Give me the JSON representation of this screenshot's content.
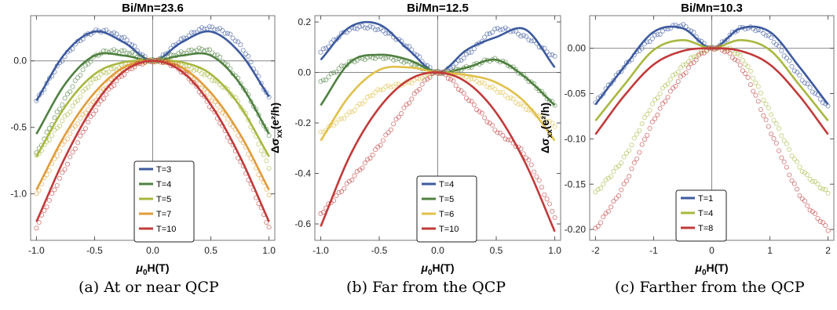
{
  "chart_data": [
    {
      "type": "line",
      "title": "Bi/Mn=23.6",
      "xlabel": "μ0H(T)",
      "ylabel": "Δσxx(e²/h)",
      "xlim": [
        -1.05,
        1.05
      ],
      "ylim": [
        -1.35,
        0.34
      ],
      "xticks": [
        -1.0,
        -0.5,
        0.0,
        0.5,
        1.0
      ],
      "xtick_labels": [
        "-1.0",
        "-0.5",
        "0.0",
        "0.5",
        "1.0"
      ],
      "yticks": [
        0.0,
        -0.5,
        -1.0
      ],
      "ytick_labels": [
        "0.0",
        "-0.5",
        "-1.0"
      ],
      "legend_position": "bottom-center",
      "caption": "(a) At or near QCP",
      "series": [
        {
          "name": "T=3",
          "color": "#3d5a9e",
          "x": [
            -1.0,
            -0.75,
            -0.5,
            -0.25,
            0.0,
            0.25,
            0.5,
            0.75,
            1.0
          ],
          "fit": [
            -0.3,
            0.06,
            0.22,
            0.14,
            0.0,
            0.14,
            0.22,
            0.06,
            -0.27
          ],
          "data": [
            -0.3,
            0.04,
            0.22,
            0.17,
            0.0,
            0.16,
            0.25,
            0.12,
            -0.28
          ]
        },
        {
          "name": "T=4",
          "color": "#4f8040",
          "x": [
            -1.0,
            -0.75,
            -0.5,
            -0.25,
            0.0,
            0.25,
            0.5,
            0.75,
            1.0
          ],
          "fit": [
            -0.55,
            -0.17,
            0.04,
            0.04,
            0.0,
            0.04,
            0.04,
            -0.17,
            -0.55
          ],
          "data": [
            -0.7,
            -0.28,
            0.03,
            0.07,
            0.0,
            0.06,
            0.07,
            -0.16,
            -0.56
          ]
        },
        {
          "name": "T=5",
          "color": "#a8b840",
          "x": [
            -1.0,
            -0.75,
            -0.5,
            -0.25,
            0.0,
            0.25,
            0.5,
            0.75,
            1.0
          ],
          "fit": [
            -0.72,
            -0.34,
            -0.1,
            -0.01,
            0.0,
            -0.01,
            -0.1,
            -0.34,
            -0.72
          ],
          "data": [
            -0.72,
            -0.42,
            -0.14,
            -0.04,
            0.0,
            -0.03,
            -0.13,
            -0.33,
            -0.8
          ]
        },
        {
          "name": "T=7",
          "color": "#e09c3a",
          "x": [
            -1.0,
            -0.75,
            -0.5,
            -0.25,
            0.0,
            0.25,
            0.5,
            0.75,
            1.0
          ],
          "fit": [
            -0.97,
            -0.55,
            -0.24,
            -0.05,
            0.0,
            -0.05,
            -0.24,
            -0.55,
            -0.97
          ],
          "data": [
            -1.0,
            -0.6,
            -0.3,
            -0.06,
            0.0,
            -0.05,
            -0.28,
            -0.58,
            -1.0
          ]
        },
        {
          "name": "T=10",
          "color": "#c13a3a",
          "x": [
            -1.0,
            -0.75,
            -0.5,
            -0.25,
            0.0,
            0.25,
            0.5,
            0.75,
            1.0
          ],
          "fit": [
            -1.21,
            -0.72,
            -0.33,
            -0.08,
            0.0,
            -0.08,
            -0.33,
            -0.72,
            -1.21
          ],
          "data": [
            -1.25,
            -0.8,
            -0.38,
            -0.1,
            0.0,
            -0.08,
            -0.35,
            -0.75,
            -1.25
          ]
        }
      ]
    },
    {
      "type": "line",
      "title": "Bi/Mn=12.5",
      "xlabel": "μ0H(T)",
      "ylabel": "Δσxx(e²/h)",
      "xlim": [
        -1.05,
        1.05
      ],
      "ylim": [
        -0.665,
        0.225
      ],
      "xticks": [
        -1.0,
        -0.5,
        0.0,
        0.5,
        1.0
      ],
      "xtick_labels": [
        "-1.0",
        "-0.5",
        "0.0",
        "0.5",
        "1.0"
      ],
      "yticks": [
        0.2,
        0.0,
        -0.2,
        -0.4,
        -0.6
      ],
      "ytick_labels": [
        "0.2",
        "0.0",
        "-0.2",
        "-0.4",
        "-0.6"
      ],
      "legend_position": "bottom-center",
      "caption": "(b) Far from the QCP",
      "series": [
        {
          "name": "T=4",
          "color": "#3d5a9e",
          "x": [
            -1.0,
            -0.75,
            -0.5,
            -0.25,
            0.0,
            0.25,
            0.5,
            0.75,
            1.0
          ],
          "fit": [
            0.05,
            0.18,
            0.19,
            0.09,
            0.0,
            0.09,
            0.14,
            0.17,
            0.02
          ],
          "data": [
            0.08,
            0.17,
            0.17,
            0.1,
            0.0,
            0.07,
            0.17,
            0.14,
            0.06
          ]
        },
        {
          "name": "T=5",
          "color": "#4f8040",
          "x": [
            -1.0,
            -0.75,
            -0.5,
            -0.25,
            0.0,
            0.25,
            0.5,
            0.75,
            1.0
          ],
          "fit": [
            -0.13,
            0.04,
            0.07,
            0.05,
            0.0,
            0.02,
            0.05,
            -0.02,
            -0.13
          ],
          "data": [
            -0.04,
            0.04,
            0.06,
            0.04,
            0.0,
            0.02,
            0.05,
            -0.02,
            -0.13
          ]
        },
        {
          "name": "T=6",
          "color": "#e0c04a",
          "x": [
            -1.0,
            -0.75,
            -0.5,
            -0.25,
            0.0,
            0.25,
            0.5,
            0.75,
            1.0
          ],
          "fit": [
            -0.27,
            -0.09,
            0.01,
            0.02,
            0.0,
            -0.01,
            -0.04,
            -0.12,
            -0.27
          ],
          "data": [
            -0.24,
            -0.16,
            -0.07,
            -0.04,
            0.0,
            -0.02,
            -0.07,
            -0.14,
            -0.21
          ]
        },
        {
          "name": "T=10",
          "color": "#c13a3a",
          "x": [
            -1.0,
            -0.75,
            -0.5,
            -0.25,
            0.0,
            0.25,
            0.5,
            0.75,
            1.0
          ],
          "fit": [
            -0.61,
            -0.33,
            -0.14,
            -0.03,
            0.0,
            -0.04,
            -0.16,
            -0.36,
            -0.63
          ],
          "data": [
            -0.56,
            -0.43,
            -0.29,
            -0.12,
            0.0,
            -0.1,
            -0.23,
            -0.33,
            -0.57
          ]
        }
      ]
    },
    {
      "type": "line",
      "title": "Bi/Mn=10.3",
      "xlabel": "μ0H(T)",
      "ylabel": "Δσxx(e²/h)",
      "xlim": [
        -2.1,
        2.1
      ],
      "ylim": [
        -0.212,
        0.036
      ],
      "xticks": [
        -2,
        -1,
        0,
        1,
        2
      ],
      "xtick_labels": [
        "-2",
        "-1",
        "0",
        "1",
        "2"
      ],
      "yticks": [
        0.0,
        -0.05,
        -0.1,
        -0.15,
        -0.2
      ],
      "ytick_labels": [
        "0.00",
        "-0.05",
        "-0.10",
        "-0.15",
        "-0.20"
      ],
      "legend_position": "bottom-center",
      "caption": "(c) Farther from the QCP",
      "series": [
        {
          "name": "T=1",
          "color": "#3d5a9e",
          "x": [
            -2.0,
            -1.5,
            -1.0,
            -0.5,
            0.0,
            0.5,
            1.0,
            1.5,
            2.0
          ],
          "fit": [
            -0.062,
            -0.02,
            0.018,
            0.022,
            0.0,
            0.022,
            0.018,
            -0.02,
            -0.062
          ],
          "data": [
            -0.06,
            -0.02,
            0.012,
            0.025,
            0.0,
            0.022,
            0.012,
            -0.03,
            -0.065
          ]
        },
        {
          "name": "T=4",
          "color": "#a8b840",
          "x": [
            -2.0,
            -1.5,
            -1.0,
            -0.5,
            0.0,
            0.5,
            1.0,
            1.5,
            2.0
          ],
          "fit": [
            -0.08,
            -0.04,
            -0.002,
            0.009,
            0.0,
            0.009,
            -0.002,
            -0.04,
            -0.08
          ],
          "data": [
            -0.16,
            -0.12,
            -0.06,
            -0.02,
            0.0,
            -0.01,
            -0.07,
            -0.13,
            -0.16
          ]
        },
        {
          "name": "T=8",
          "color": "#c13a3a",
          "x": [
            -2.0,
            -1.5,
            -1.0,
            -0.5,
            0.0,
            0.5,
            1.0,
            1.5,
            2.0
          ],
          "fit": [
            -0.095,
            -0.052,
            -0.018,
            -0.003,
            0.0,
            -0.003,
            -0.018,
            -0.052,
            -0.095
          ],
          "data": [
            -0.2,
            -0.15,
            -0.08,
            -0.03,
            0.0,
            -0.02,
            -0.09,
            -0.16,
            -0.2
          ]
        }
      ]
    }
  ]
}
